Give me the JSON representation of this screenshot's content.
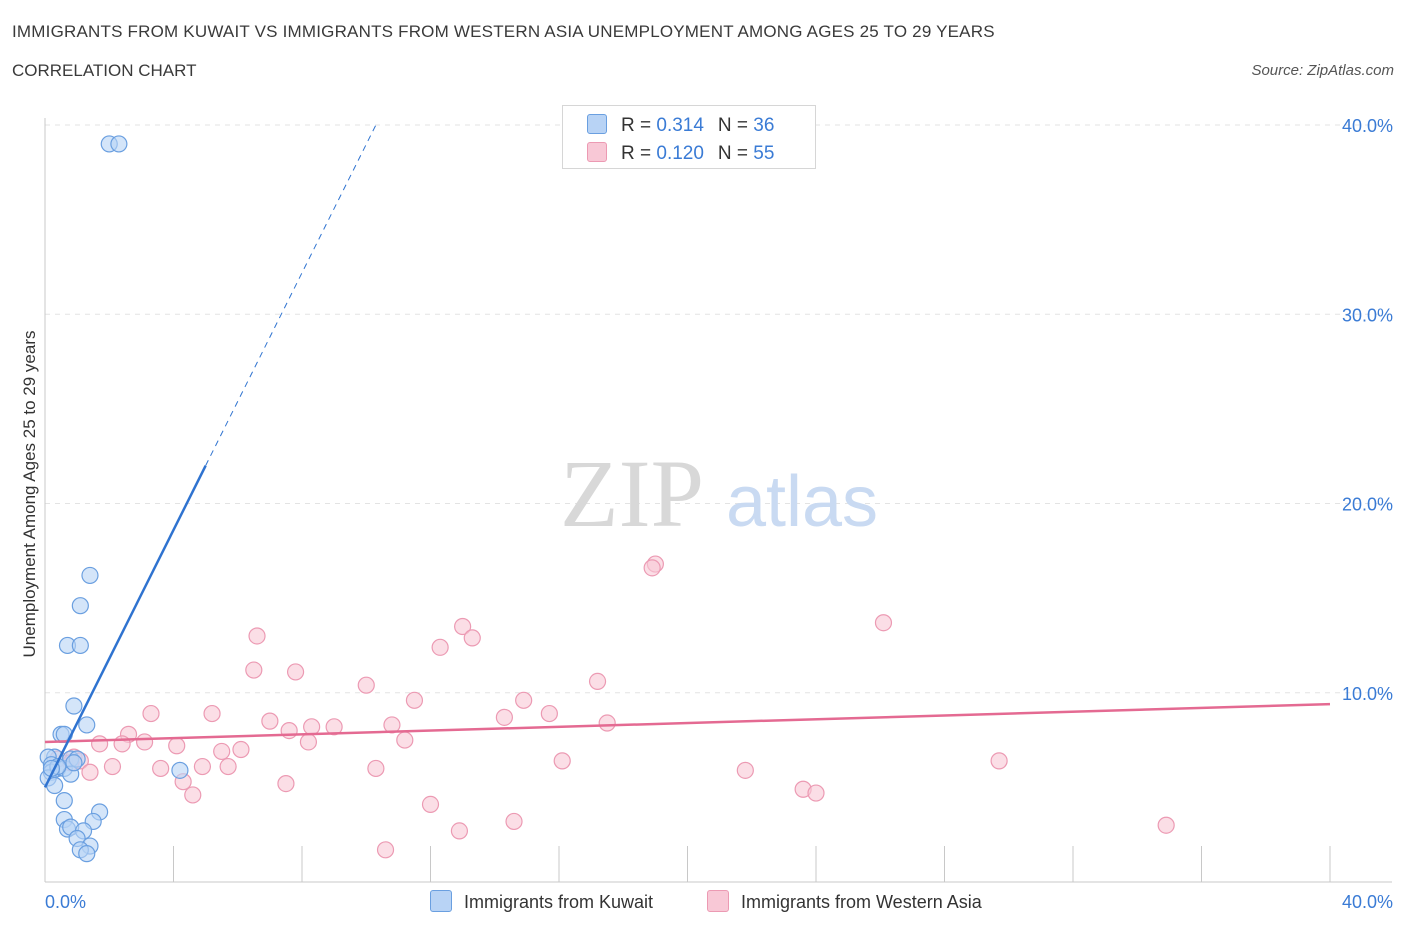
{
  "header": {
    "title": "IMMIGRANTS FROM KUWAIT VS IMMIGRANTS FROM WESTERN ASIA UNEMPLOYMENT AMONG AGES 25 TO 29 YEARS",
    "subtitle": "CORRELATION CHART",
    "source": "Source: ZipAtlas.com"
  },
  "watermark": {
    "zip": "ZIP",
    "atlas": "atlas"
  },
  "legend": {
    "kuwait": {
      "r_label": "R = ",
      "r_value": "0.314",
      "n_label": "N = ",
      "n_value": "36"
    },
    "western_asia": {
      "r_label": "R = ",
      "r_value": "0.120",
      "n_label": "N = ",
      "n_value": "55"
    }
  },
  "colors": {
    "kuwait_fill": "#b8d3f5",
    "kuwait_stroke": "#6a9fe0",
    "kuwait_line": "#2f73d0",
    "western_fill": "#f8c8d6",
    "western_stroke": "#ec9ab3",
    "western_line": "#e46a92",
    "grid": "#e3e3e3",
    "axis_text": "#3a7bd5"
  },
  "chart_data": {
    "type": "scatter",
    "title": "IMMIGRANTS FROM KUWAIT VS IMMIGRANTS FROM WESTERN ASIA UNEMPLOYMENT AMONG AGES 25 TO 29 YEARS",
    "xlabel": "",
    "ylabel": "Unemployment Among Ages 25 to 29 years",
    "xlim": [
      0,
      40
    ],
    "ylim": [
      0,
      40
    ],
    "x_tick_labels": [
      "0.0%",
      "40.0%"
    ],
    "y_tick_labels": [
      "10.0%",
      "20.0%",
      "30.0%",
      "40.0%"
    ],
    "y_ticks": [
      10,
      20,
      30,
      40
    ],
    "series": [
      {
        "name": "Immigrants from Kuwait",
        "r": 0.314,
        "n": 36,
        "trend": {
          "x0": 0.0,
          "y0": 5.0,
          "x1": 5.0,
          "y1": 22.0,
          "dash_to_x": 10.3,
          "dash_to_y": 40.0
        },
        "points": [
          [
            2.0,
            39.0
          ],
          [
            2.3,
            39.0
          ],
          [
            1.4,
            16.2
          ],
          [
            1.1,
            14.6
          ],
          [
            0.7,
            12.5
          ],
          [
            1.1,
            12.5
          ],
          [
            0.9,
            9.3
          ],
          [
            1.3,
            8.3
          ],
          [
            0.5,
            7.8
          ],
          [
            0.6,
            7.8
          ],
          [
            0.3,
            6.6
          ],
          [
            0.1,
            6.6
          ],
          [
            0.2,
            6.2
          ],
          [
            0.4,
            6.0
          ],
          [
            0.6,
            6.0
          ],
          [
            0.8,
            6.5
          ],
          [
            1.0,
            6.5
          ],
          [
            0.2,
            5.8
          ],
          [
            0.1,
            5.5
          ],
          [
            0.8,
            5.7
          ],
          [
            4.2,
            5.9
          ],
          [
            0.3,
            5.1
          ],
          [
            0.6,
            4.3
          ],
          [
            1.7,
            3.7
          ],
          [
            0.6,
            3.3
          ],
          [
            1.5,
            3.2
          ],
          [
            0.7,
            2.8
          ],
          [
            0.8,
            2.9
          ],
          [
            1.2,
            2.7
          ],
          [
            1.0,
            2.3
          ],
          [
            1.4,
            1.9
          ],
          [
            1.1,
            1.7
          ],
          [
            1.3,
            1.5
          ],
          [
            0.4,
            6.1
          ],
          [
            0.2,
            6.0
          ],
          [
            0.9,
            6.3
          ]
        ]
      },
      {
        "name": "Immigrants from Western Asia",
        "r": 0.12,
        "n": 55,
        "trend": {
          "x0": 0.0,
          "y0": 7.4,
          "x1": 40.0,
          "y1": 9.4
        },
        "points": [
          [
            19.0,
            16.8
          ],
          [
            18.9,
            16.6
          ],
          [
            26.1,
            13.7
          ],
          [
            13.0,
            13.5
          ],
          [
            13.3,
            12.9
          ],
          [
            6.6,
            13.0
          ],
          [
            12.3,
            12.4
          ],
          [
            6.5,
            11.2
          ],
          [
            7.8,
            11.1
          ],
          [
            10.0,
            10.4
          ],
          [
            17.2,
            10.6
          ],
          [
            11.5,
            9.6
          ],
          [
            14.9,
            9.6
          ],
          [
            3.3,
            8.9
          ],
          [
            5.2,
            8.9
          ],
          [
            15.7,
            8.9
          ],
          [
            14.3,
            8.7
          ],
          [
            7.0,
            8.5
          ],
          [
            17.5,
            8.4
          ],
          [
            10.8,
            8.3
          ],
          [
            9.0,
            8.2
          ],
          [
            8.3,
            8.2
          ],
          [
            7.6,
            8.0
          ],
          [
            2.6,
            7.8
          ],
          [
            11.2,
            7.5
          ],
          [
            8.2,
            7.4
          ],
          [
            3.1,
            7.4
          ],
          [
            1.7,
            7.3
          ],
          [
            2.4,
            7.3
          ],
          [
            4.1,
            7.2
          ],
          [
            6.1,
            7.0
          ],
          [
            5.5,
            6.9
          ],
          [
            16.1,
            6.4
          ],
          [
            29.7,
            6.4
          ],
          [
            0.9,
            6.6
          ],
          [
            1.1,
            6.4
          ],
          [
            2.1,
            6.1
          ],
          [
            3.6,
            6.0
          ],
          [
            4.9,
            6.1
          ],
          [
            5.7,
            6.1
          ],
          [
            10.3,
            6.0
          ],
          [
            21.8,
            5.9
          ],
          [
            1.4,
            5.8
          ],
          [
            0.4,
            6.5
          ],
          [
            4.3,
            5.3
          ],
          [
            7.5,
            5.2
          ],
          [
            23.6,
            4.9
          ],
          [
            24.0,
            4.7
          ],
          [
            4.6,
            4.6
          ],
          [
            12.0,
            4.1
          ],
          [
            14.6,
            3.2
          ],
          [
            34.9,
            3.0
          ],
          [
            12.9,
            2.7
          ],
          [
            10.6,
            1.7
          ],
          [
            0.8,
            6.3
          ]
        ]
      }
    ]
  },
  "bottom_legend": {
    "kuwait_label": "Immigrants from Kuwait",
    "western_label": "Immigrants from Western Asia"
  }
}
